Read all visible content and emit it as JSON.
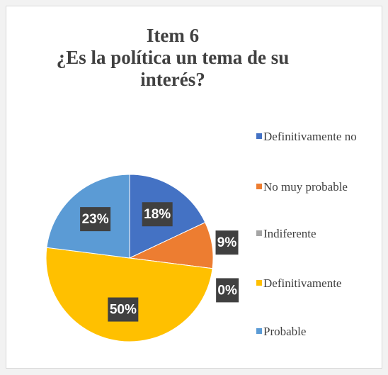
{
  "chart_data": {
    "type": "pie",
    "title": "Item 6",
    "subtitle": "¿Es la política un tema de su interés?",
    "categories": [
      "Definitivamente no",
      "No muy probable",
      "Indiferente",
      "Definitivamente",
      "Probable"
    ],
    "values": [
      18,
      9,
      0,
      50,
      23
    ],
    "value_labels": [
      "18%",
      "9%",
      "0%",
      "50%",
      "23%"
    ],
    "colors": [
      "#4472c4",
      "#ed7d31",
      "#a5a5a5",
      "#ffc000",
      "#5b9bd5"
    ],
    "legend": "right"
  }
}
